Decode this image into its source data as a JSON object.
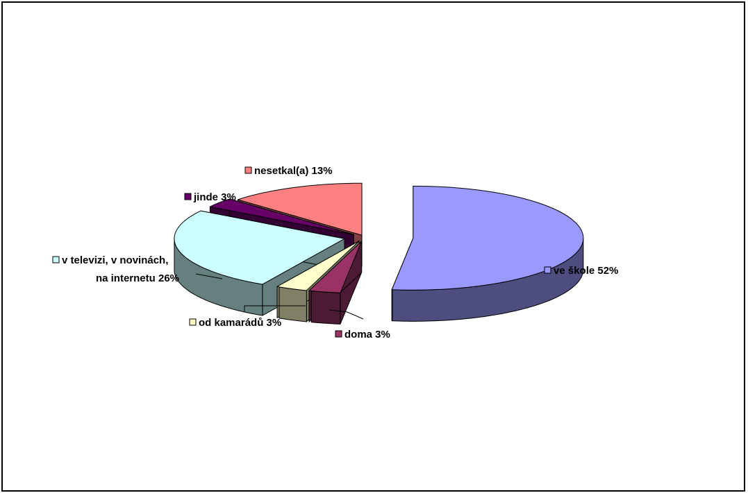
{
  "chart_data": {
    "type": "pie",
    "three_d": true,
    "exploded": true,
    "title": "",
    "slices": [
      {
        "label": "ve škole 52%",
        "value": 52,
        "color": "#9999ff",
        "side": "#4d4d80"
      },
      {
        "label": "doma 3%",
        "value": 3,
        "color": "#993366",
        "side": "#4d1a33"
      },
      {
        "label": "od kamarádů 3%",
        "value": 3,
        "color": "#ffffcc",
        "side": "#808066"
      },
      {
        "label": [
          "v televizi, v novinách,",
          "na internetu 26%"
        ],
        "value": 26,
        "color": "#ccffff",
        "side": "#668080"
      },
      {
        "label": "jinde 3%",
        "value": 3,
        "color": "#660066",
        "side": "#330033"
      },
      {
        "label": "nesetkal(a) 13%",
        "value": 13,
        "color": "#ff8080",
        "side": "#804040"
      }
    ]
  }
}
